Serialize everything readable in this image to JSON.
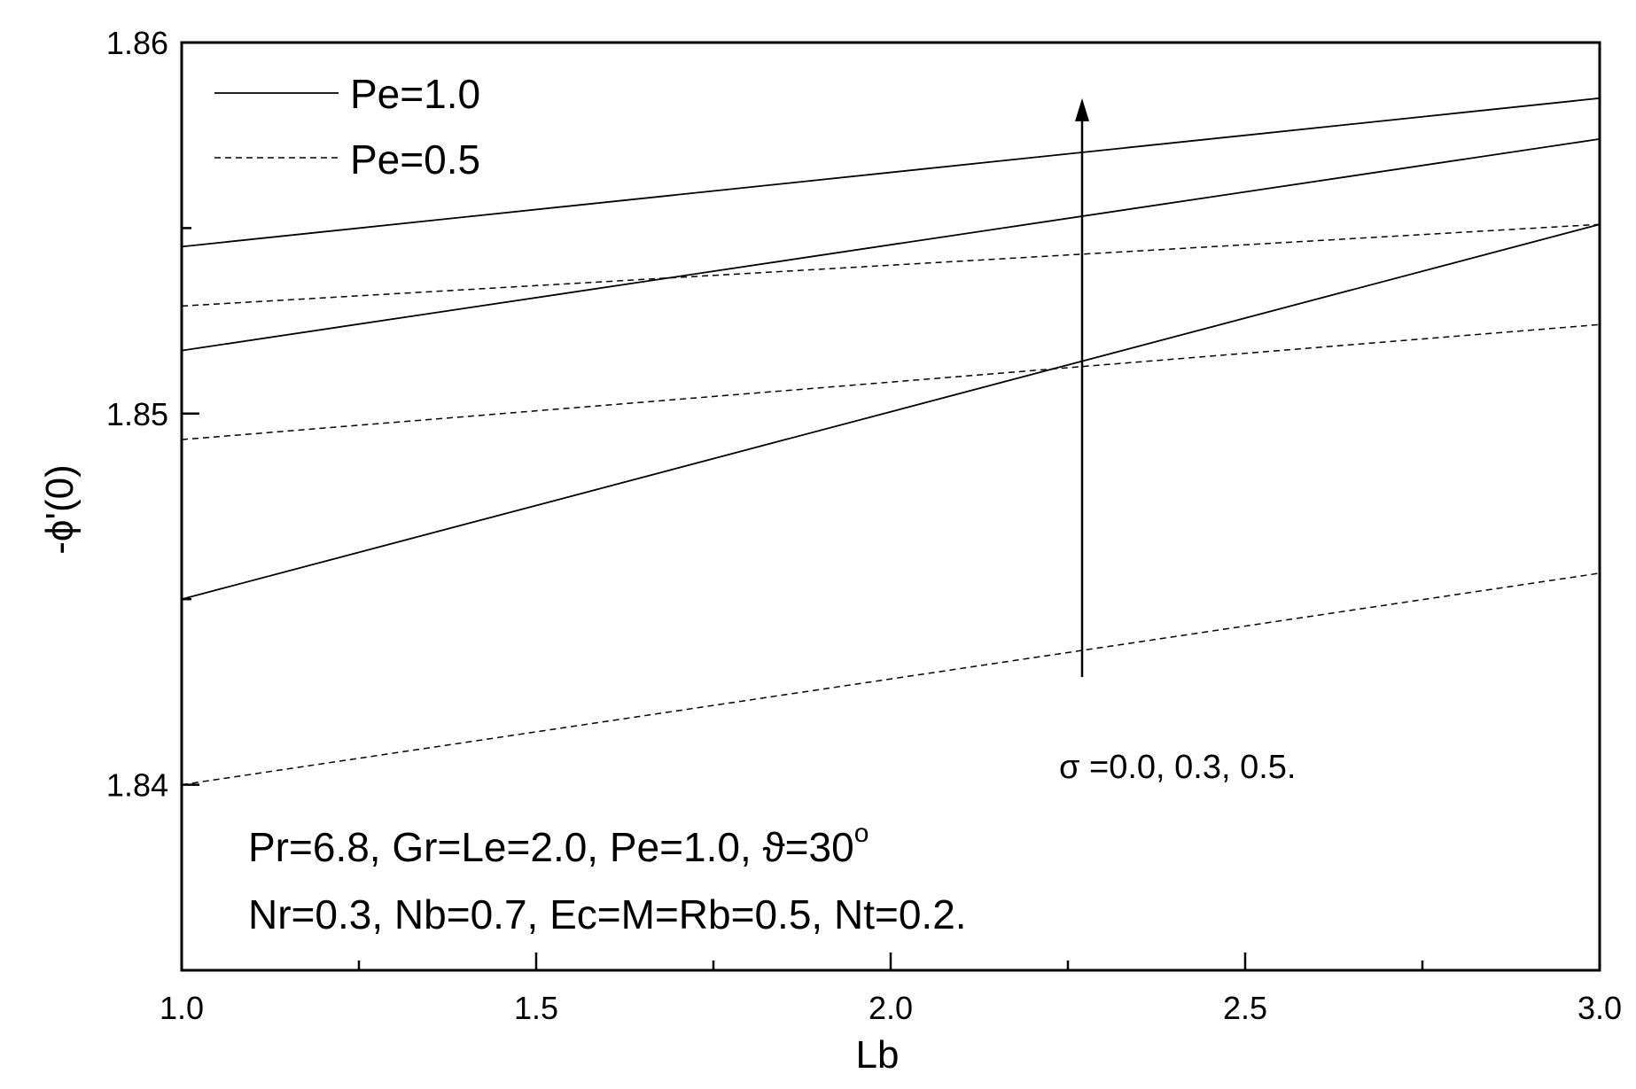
{
  "chart_data": {
    "type": "line",
    "xlabel": "Lb",
    "ylabel": "-ϕ'(0)",
    "xlim": [
      1.0,
      3.0
    ],
    "ylim": [
      1.835,
      1.86
    ],
    "x_ticks": [
      "1.0",
      "1.5",
      "2.0",
      "2.5",
      "3.0"
    ],
    "y_ticks": [
      "1.84",
      "1.85",
      "1.86"
    ],
    "x": [
      1.0,
      3.0
    ],
    "legend": {
      "position": "top-left",
      "entries": [
        {
          "label": "Pe=1.0",
          "style": "solid"
        },
        {
          "label": "Pe=0.5",
          "style": "dashed"
        }
      ]
    },
    "series": [
      {
        "group": "Pe=1.0",
        "sigma": "0.0",
        "style": "solid",
        "values": [
          1.845,
          1.8551
        ]
      },
      {
        "group": "Pe=1.0",
        "sigma": "0.3",
        "style": "solid",
        "values": [
          1.8517,
          1.8574
        ]
      },
      {
        "group": "Pe=1.0",
        "sigma": "0.5",
        "style": "solid",
        "values": [
          1.8545,
          1.8585
        ]
      },
      {
        "group": "Pe=0.5",
        "sigma": "0.0",
        "style": "dashed",
        "values": [
          1.84,
          1.8457
        ]
      },
      {
        "group": "Pe=0.5",
        "sigma": "0.3",
        "style": "dashed",
        "values": [
          1.8493,
          1.8524
        ]
      },
      {
        "group": "Pe=0.5",
        "sigma": "0.5",
        "style": "dashed",
        "values": [
          1.8529,
          1.8551
        ]
      }
    ],
    "arrow": {
      "x": 2.27,
      "y_from": 1.8429,
      "y_to": 1.8585
    },
    "arrow_label": "σ =0.0, 0.3, 0.5.",
    "params_line1": "Pr=6.8, Gr=Le=2.0, Pe=1.0, ϑ=30",
    "params_line1_sup": "o",
    "params_line2": "Nr=0.3, Nb=0.7, Ec=M=Rb=0.5, Nt=0.2."
  }
}
